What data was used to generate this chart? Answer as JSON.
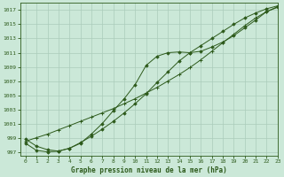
{
  "title": "Graphe pression niveau de la mer (hPa)",
  "background_color": "#cbe8d8",
  "grid_color": "#aaccbb",
  "line_color": "#2d5a1b",
  "xlim": [
    -0.5,
    23
  ],
  "ylim": [
    996.5,
    1018
  ],
  "yticks": [
    997,
    999,
    1001,
    1003,
    1005,
    1007,
    1009,
    1011,
    1013,
    1015,
    1017
  ],
  "xticks": [
    0,
    1,
    2,
    3,
    4,
    5,
    6,
    7,
    8,
    9,
    10,
    11,
    12,
    13,
    14,
    15,
    16,
    17,
    18,
    19,
    20,
    21,
    22,
    23
  ],
  "line_straight": [
    998.5,
    999.0,
    999.5,
    1000.1,
    1000.7,
    1001.3,
    1001.9,
    1002.5,
    1003.1,
    1003.8,
    1004.5,
    1005.3,
    1006.1,
    1007.0,
    1007.9,
    1008.9,
    1010.0,
    1011.2,
    1012.4,
    1013.6,
    1014.8,
    1015.9,
    1016.8,
    1017.5
  ],
  "line_curved": [
    998.8,
    997.8,
    997.3,
    997.1,
    997.5,
    998.2,
    999.5,
    1001.0,
    1002.8,
    1004.5,
    1006.5,
    1009.2,
    1010.5,
    1011.0,
    1011.1,
    1011.0,
    1011.2,
    1011.8,
    1012.5,
    1013.4,
    1014.5,
    1015.6,
    1016.8,
    1017.4
  ],
  "line_lower": [
    998.2,
    997.2,
    997.0,
    997.1,
    997.5,
    998.3,
    999.2,
    1000.2,
    1001.3,
    1002.5,
    1003.8,
    1005.2,
    1006.8,
    1008.3,
    1009.8,
    1011.0,
    1012.0,
    1013.0,
    1014.0,
    1015.0,
    1015.9,
    1016.6,
    1017.2,
    1017.6
  ]
}
